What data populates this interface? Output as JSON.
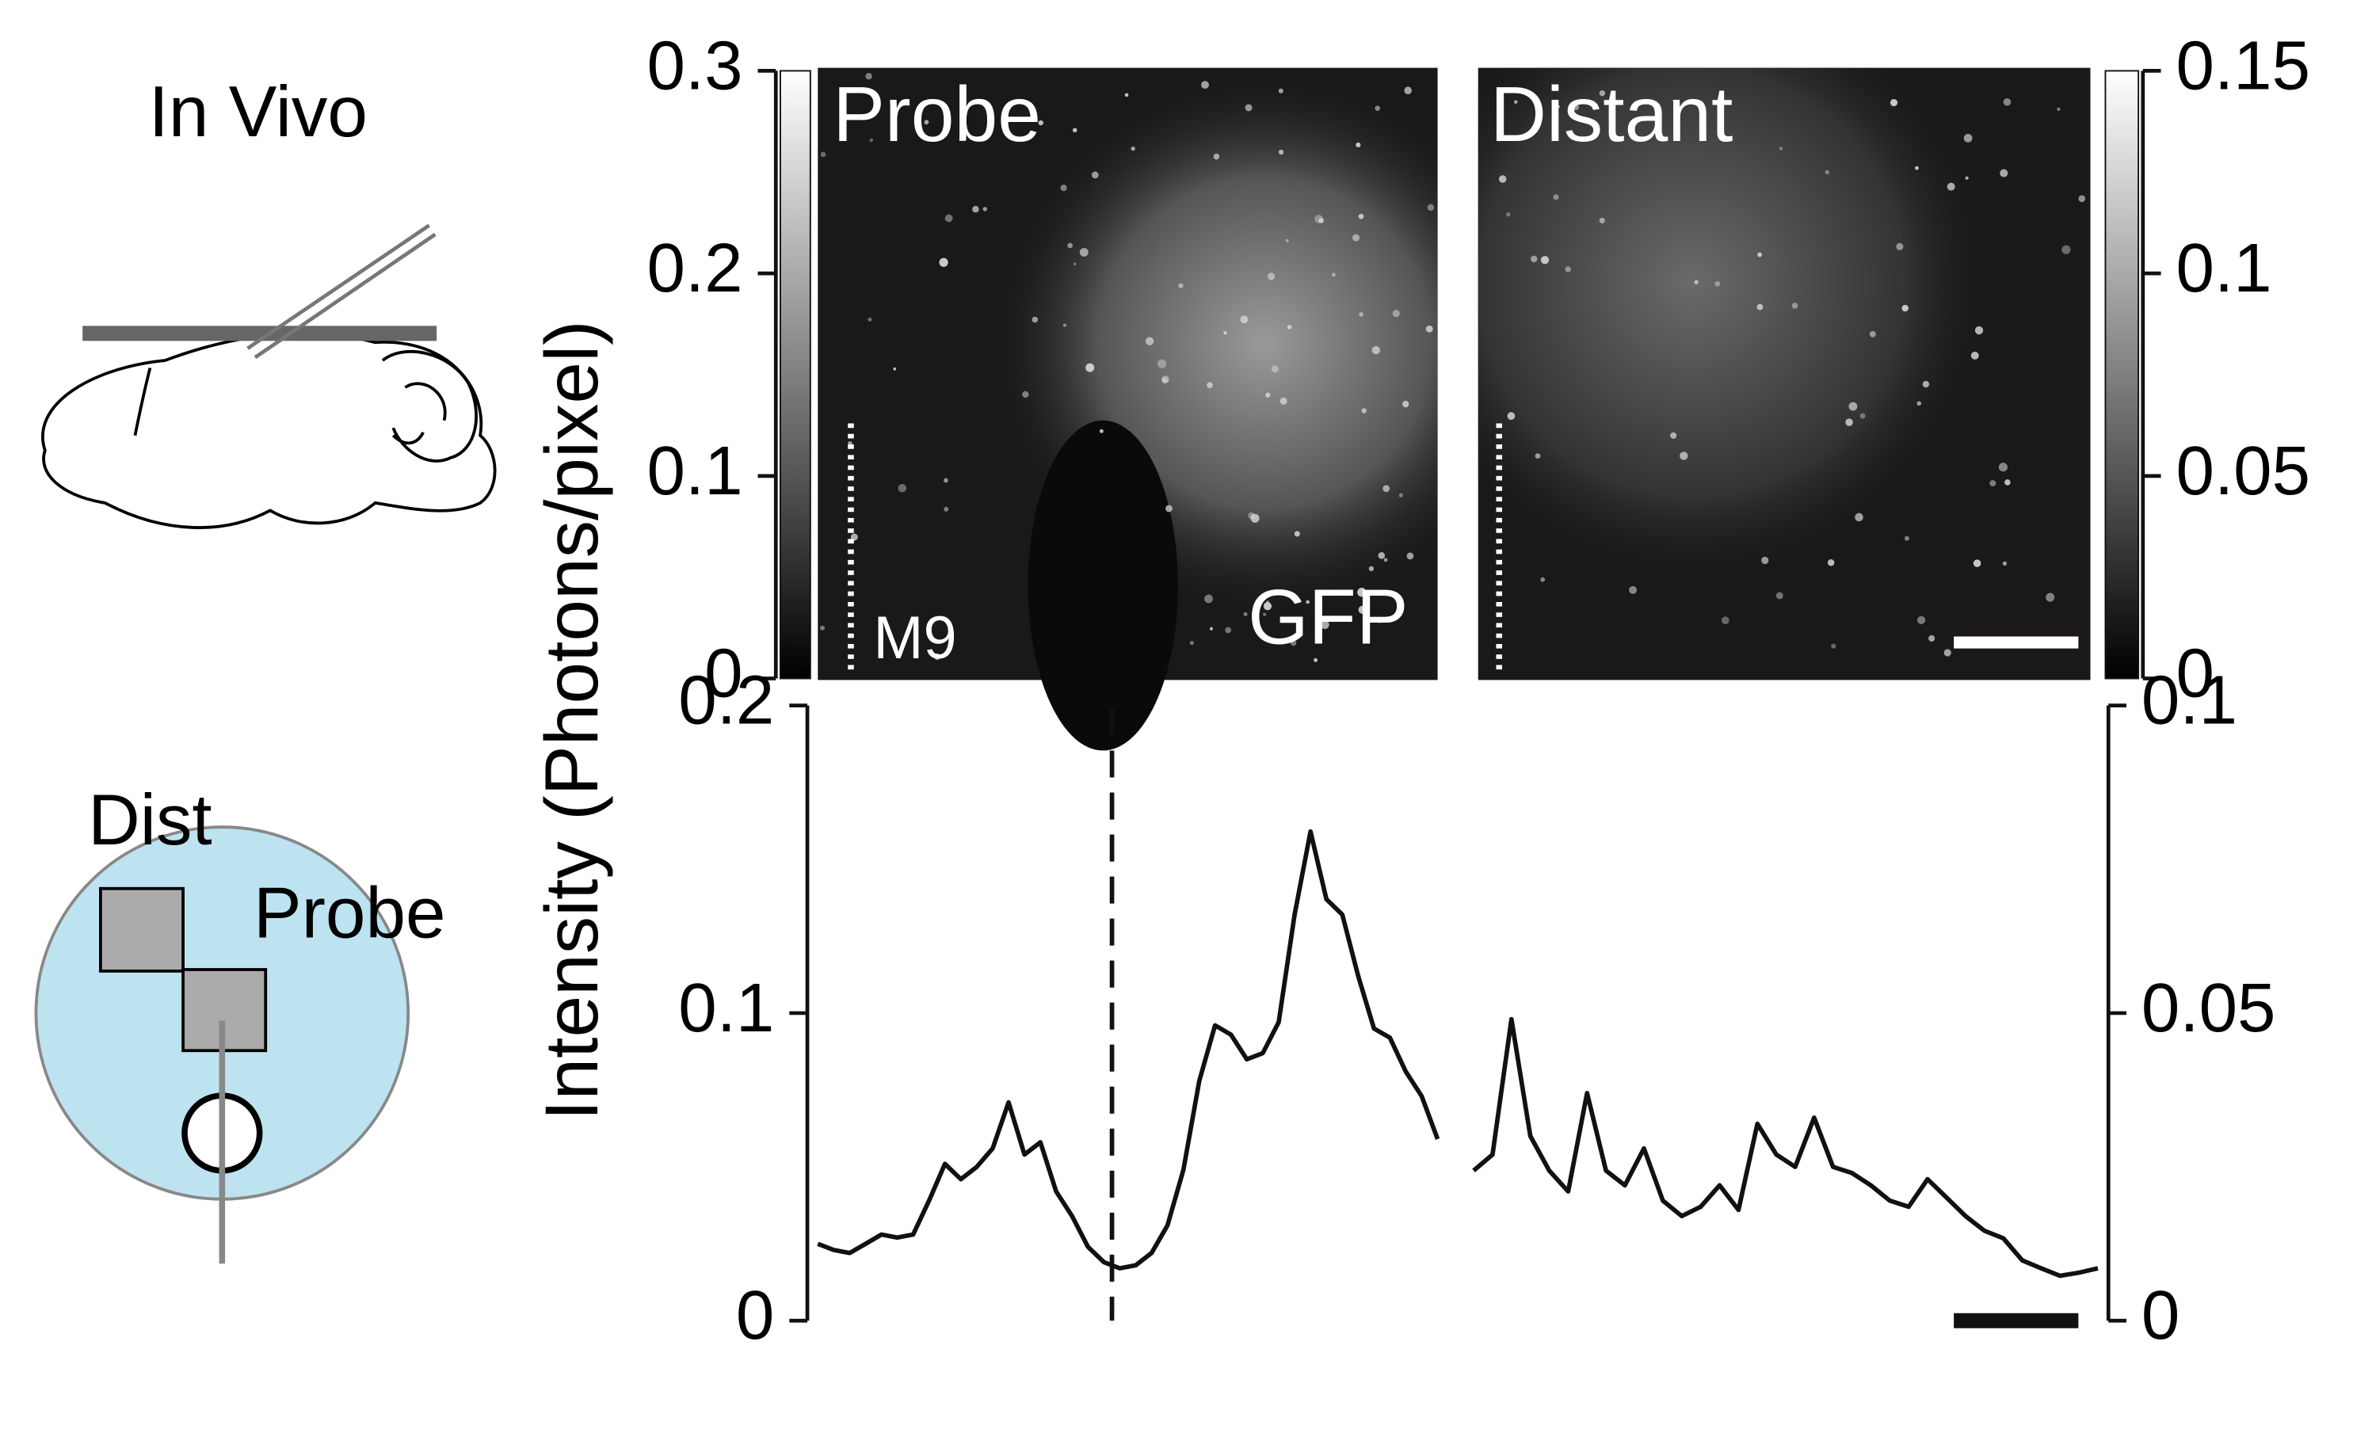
{
  "labels": {
    "in_vivo": "In Vivo",
    "dist": "Dist",
    "probe_schematic": "Probe",
    "probe_image": "Probe",
    "distant_image": "Distant",
    "m9": "M9",
    "gfp": "GFP"
  },
  "chart_data": [
    {
      "type": "colorbar",
      "ylim": [
        0,
        0.3
      ],
      "yticks": [
        0,
        0.1,
        0.2,
        0.3
      ]
    },
    {
      "type": "colorbar",
      "ylim": [
        0,
        0.15
      ],
      "yticks": [
        0,
        0.05,
        0.1,
        0.15
      ]
    },
    {
      "type": "line",
      "ylabel": "Intensity (Photons/pixel)",
      "ylim": [
        0,
        0.2
      ],
      "yticks": [
        0,
        0.1,
        0.2
      ],
      "y2lim": [
        0,
        0.1
      ],
      "y2ticks": [
        0,
        0.05,
        0.1
      ],
      "series": [
        {
          "color": "#111111",
          "values": [
            0.025,
            0.023,
            0.022,
            0.025,
            0.028,
            0.027,
            0.028,
            0.039,
            0.051,
            0.046,
            0.05,
            0.056,
            0.071,
            0.054,
            0.058,
            0.042,
            0.034,
            0.024,
            0.019,
            0.017,
            0.018,
            0.022,
            0.031,
            0.049,
            0.078,
            0.096,
            0.093,
            0.085,
            0.087,
            0.097,
            0.132,
            0.159,
            0.137,
            0.132,
            0.112,
            0.095,
            0.092,
            0.081,
            0.073,
            0.059
          ]
        },
        {
          "color": "#111111",
          "axis": "y2",
          "values": [
            0.0244,
            0.027,
            0.049,
            0.03,
            0.0244,
            0.021,
            0.037,
            0.0244,
            0.022,
            0.028,
            0.0195,
            0.017,
            0.0185,
            0.022,
            0.018,
            0.032,
            0.027,
            0.025,
            0.033,
            0.025,
            0.024,
            0.022,
            0.0195,
            0.0185,
            0.023,
            0.02,
            0.017,
            0.0146,
            0.0134,
            0.0098,
            0.0085,
            0.0073,
            0.0078,
            0.0085
          ]
        }
      ]
    }
  ]
}
